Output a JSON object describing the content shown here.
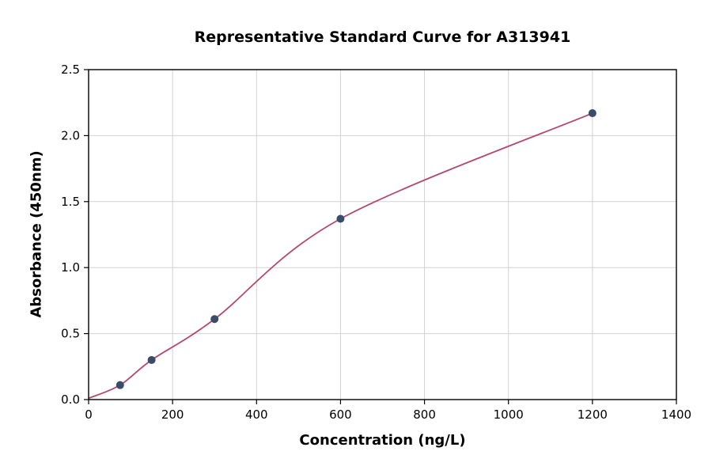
{
  "chart_data": {
    "type": "scatter",
    "title": "Representative Standard Curve for A313941",
    "xlabel": "Concentration (ng/L)",
    "ylabel": "Absorbance (450nm)",
    "xlim": [
      0,
      1400
    ],
    "ylim": [
      0,
      2.5
    ],
    "x_ticks": [
      0,
      200,
      400,
      600,
      800,
      1000,
      1200,
      1400
    ],
    "x_tick_labels": [
      "0",
      "200",
      "400",
      "600",
      "800",
      "1000",
      "1200",
      "1400"
    ],
    "y_ticks": [
      0.0,
      0.5,
      1.0,
      1.5,
      2.0,
      2.5
    ],
    "y_tick_labels": [
      "0.0",
      "0.5",
      "1.0",
      "1.5",
      "2.0",
      "2.5"
    ],
    "grid": true,
    "legend": "none",
    "points": {
      "x": [
        75,
        150,
        300,
        600,
        1200
      ],
      "y": [
        0.11,
        0.3,
        0.61,
        1.37,
        2.17
      ]
    },
    "curve": {
      "x": [
        0,
        75,
        150,
        300,
        600,
        1200
      ],
      "y": [
        0.01,
        0.11,
        0.3,
        0.61,
        1.37,
        2.17
      ]
    },
    "colors": {
      "line": "#b5486f",
      "marker": "#3b4c6a",
      "grid": "#d2d2d2",
      "spine": "#000000",
      "background": "#ffffff"
    }
  }
}
